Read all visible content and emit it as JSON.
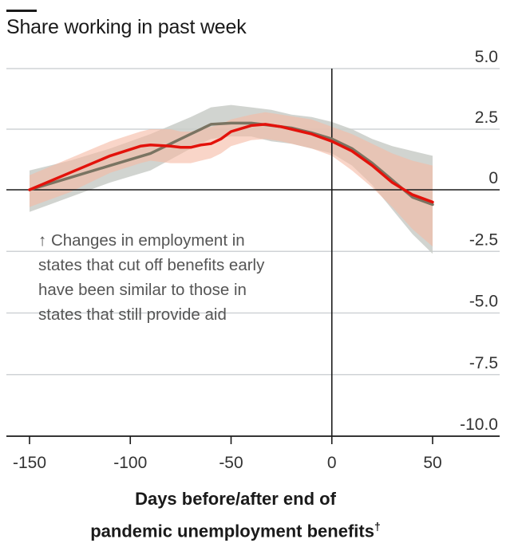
{
  "chart_data": {
    "type": "line",
    "title": "Share working in past week",
    "xlabel_line1": "Days before/after end of",
    "xlabel_line2": "pandemic unemployment benefits",
    "xlabel_footnote": "†",
    "annotation": "↑ Changes in employment in\nstates that cut off benefits early\nhave been similar to those in\nstates that still provide aid",
    "xlim": [
      -150,
      50
    ],
    "ylim": [
      -10,
      5
    ],
    "xticks": [
      -150,
      -100,
      -50,
      0,
      50
    ],
    "xtick_labels": [
      "-150",
      "-100",
      "-50",
      "0",
      "50"
    ],
    "yticks": [
      5,
      2.5,
      0,
      -2.5,
      -5,
      -7.5,
      -10
    ],
    "ytick_labels": [
      "5.0",
      "2.5",
      "0",
      "-2.5",
      "-5.0",
      "-7.5",
      "-10.0"
    ],
    "grid": true,
    "series": [
      {
        "color": "#7a7462",
        "band_color": "#c9ccc8",
        "x": [
          -150,
          -130,
          -110,
          -90,
          -70,
          -60,
          -50,
          -40,
          -30,
          -20,
          -10,
          0,
          10,
          20,
          30,
          40,
          50
        ],
        "values": [
          0.0,
          0.5,
          1.0,
          1.5,
          2.3,
          2.7,
          2.75,
          2.75,
          2.65,
          2.55,
          2.35,
          2.1,
          1.7,
          1.1,
          0.4,
          -0.3,
          -0.6
        ],
        "lower": [
          -0.9,
          -0.3,
          0.3,
          0.8,
          1.7,
          2.1,
          2.2,
          2.2,
          2.0,
          1.9,
          1.7,
          1.5,
          1.0,
          0.2,
          -0.8,
          -1.8,
          -2.6
        ],
        "upper": [
          0.8,
          1.2,
          1.7,
          2.3,
          3.0,
          3.4,
          3.5,
          3.4,
          3.3,
          3.1,
          3.0,
          2.8,
          2.5,
          2.1,
          1.8,
          1.6,
          1.4
        ]
      },
      {
        "color": "#e3120b",
        "band_color": "#f5b9a3",
        "x": [
          -150,
          -130,
          -110,
          -95,
          -90,
          -80,
          -75,
          -70,
          -65,
          -60,
          -55,
          -50,
          -40,
          -33,
          -25,
          -10,
          0,
          10,
          20,
          30,
          40,
          50
        ],
        "values": [
          0.0,
          0.7,
          1.4,
          1.8,
          1.85,
          1.8,
          1.75,
          1.75,
          1.85,
          1.9,
          2.1,
          2.4,
          2.65,
          2.7,
          2.6,
          2.3,
          2.0,
          1.6,
          1.0,
          0.3,
          -0.2,
          -0.5
        ],
        "lower": [
          -0.7,
          -0.1,
          0.7,
          1.1,
          1.2,
          1.1,
          1.1,
          1.1,
          1.2,
          1.3,
          1.5,
          1.8,
          2.05,
          2.1,
          2.0,
          1.7,
          1.4,
          0.8,
          0.1,
          -0.7,
          -1.6,
          -2.3
        ],
        "upper": [
          0.6,
          1.3,
          2.0,
          2.4,
          2.5,
          2.5,
          2.4,
          2.4,
          2.5,
          2.6,
          2.7,
          2.9,
          3.1,
          3.2,
          3.1,
          2.9,
          2.6,
          2.3,
          1.9,
          1.5,
          1.2,
          1.0
        ]
      }
    ]
  }
}
